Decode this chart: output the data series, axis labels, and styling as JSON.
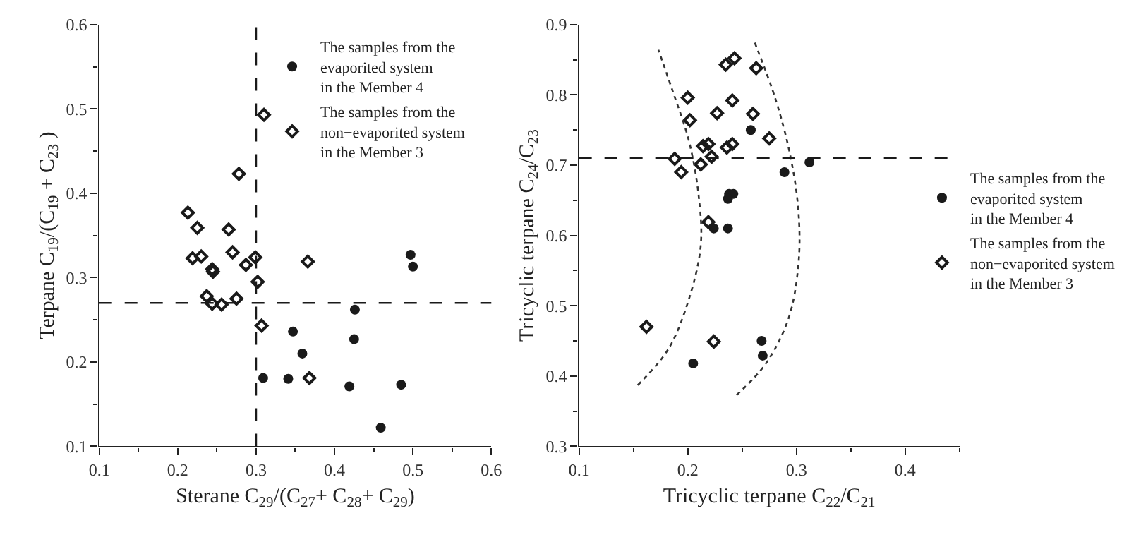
{
  "chart_data": [
    {
      "type": "scatter",
      "xlabel": "Sterane C$_{29}$/(C$_{27}$+ C$_{28}$+ C$_{29}$)",
      "ylabel": "Terpane C$_{19}$/(C$_{19}$ + C$_{23}$ )",
      "xlim": [
        0.1,
        0.6
      ],
      "xticks": [
        0.1,
        0.2,
        0.3,
        0.4,
        0.5,
        0.6
      ],
      "ylim": [
        0.1,
        0.6
      ],
      "yticks": [
        0.1,
        0.2,
        0.3,
        0.4,
        0.5,
        0.6
      ],
      "legend": "top right",
      "ref_lines": [
        {
          "axis": "x",
          "value": 0.3,
          "line_style": "dashed",
          "color": "#1a1a1a"
        },
        {
          "axis": "y",
          "value": 0.27,
          "line_style": "dashed",
          "color": "#1a1a1a"
        }
      ],
      "series": [
        {
          "name": "The samples from the\nevaporited system\nin the Member 4",
          "color": "#1a1a1a",
          "marker": "circle",
          "x": [
            0.497,
            0.5,
            0.426,
            0.347,
            0.425,
            0.359,
            0.309,
            0.341,
            0.419,
            0.485,
            0.459
          ],
          "values": [
            0.327,
            0.313,
            0.262,
            0.236,
            0.227,
            0.21,
            0.181,
            0.18,
            0.171,
            0.173,
            0.122
          ]
        },
        {
          "name": "The samples from the\nnon−evaporited system\nin the Member 3",
          "color": "#1a1a1a",
          "marker": "diamond",
          "x": [
            0.31,
            0.278,
            0.213,
            0.225,
            0.265,
            0.219,
            0.23,
            0.27,
            0.287,
            0.299,
            0.366,
            0.244,
            0.245,
            0.302,
            0.237,
            0.244,
            0.256,
            0.275,
            0.307,
            0.368
          ],
          "values": [
            0.493,
            0.423,
            0.377,
            0.359,
            0.357,
            0.323,
            0.325,
            0.33,
            0.315,
            0.324,
            0.319,
            0.31,
            0.307,
            0.295,
            0.278,
            0.269,
            0.268,
            0.275,
            0.243,
            0.181
          ]
        }
      ]
    },
    {
      "type": "scatter",
      "xlabel": "Tricyclic terpane C$_{22}$/C$_{21}$",
      "ylabel": "Tricyclic terpane C$_{24}$/C$_{23}$",
      "xlim": [
        0.1,
        0.45
      ],
      "xticks": [
        0.1,
        0.2,
        0.3,
        0.4
      ],
      "ylim": [
        0.3,
        0.9
      ],
      "yticks": [
        0.3,
        0.4,
        0.5,
        0.6,
        0.7,
        0.8,
        0.9
      ],
      "legend": "right",
      "ref_lines": [
        {
          "axis": "y",
          "value": 0.71,
          "line_style": "dashed",
          "color": "#1a1a1a"
        }
      ],
      "series": [
        {
          "name": "The samples from the\nevaporited system\nin the Member 4",
          "color": "#1a1a1a",
          "marker": "circle",
          "x": [
            0.258,
            0.312,
            0.289,
            0.238,
            0.242,
            0.237,
            0.237,
            0.224,
            0.268,
            0.269,
            0.205
          ],
          "values": [
            0.75,
            0.704,
            0.69,
            0.659,
            0.659,
            0.652,
            0.61,
            0.61,
            0.45,
            0.429,
            0.418
          ]
        },
        {
          "name": "The samples from the\nnon−evaporited system\nin the Member 3",
          "color": "#1a1a1a",
          "marker": "diamond",
          "x": [
            0.235,
            0.243,
            0.263,
            0.2,
            0.241,
            0.202,
            0.227,
            0.26,
            0.275,
            0.214,
            0.219,
            0.236,
            0.241,
            0.222,
            0.188,
            0.212,
            0.194,
            0.219,
            0.162,
            0.224
          ],
          "values": [
            0.843,
            0.852,
            0.838,
            0.796,
            0.792,
            0.764,
            0.774,
            0.773,
            0.738,
            0.727,
            0.73,
            0.725,
            0.73,
            0.712,
            0.709,
            0.701,
            0.69,
            0.619,
            0.47,
            0.449
          ]
        },
        {
          "type": "line",
          "line_style": "dotted",
          "color": "#333333",
          "marker": "none",
          "x": [
            0.154,
            0.182,
            0.201,
            0.212,
            0.21,
            0.201,
            0.186,
            0.173
          ],
          "values": [
            0.387,
            0.438,
            0.509,
            0.586,
            0.657,
            0.735,
            0.806,
            0.864
          ]
        },
        {
          "type": "line",
          "line_style": "dotted",
          "color": "#333333",
          "marker": "none",
          "x": [
            0.245,
            0.272,
            0.293,
            0.302,
            0.302,
            0.295,
            0.281,
            0.261
          ],
          "values": [
            0.373,
            0.418,
            0.483,
            0.561,
            0.632,
            0.709,
            0.793,
            0.877
          ]
        }
      ]
    }
  ]
}
